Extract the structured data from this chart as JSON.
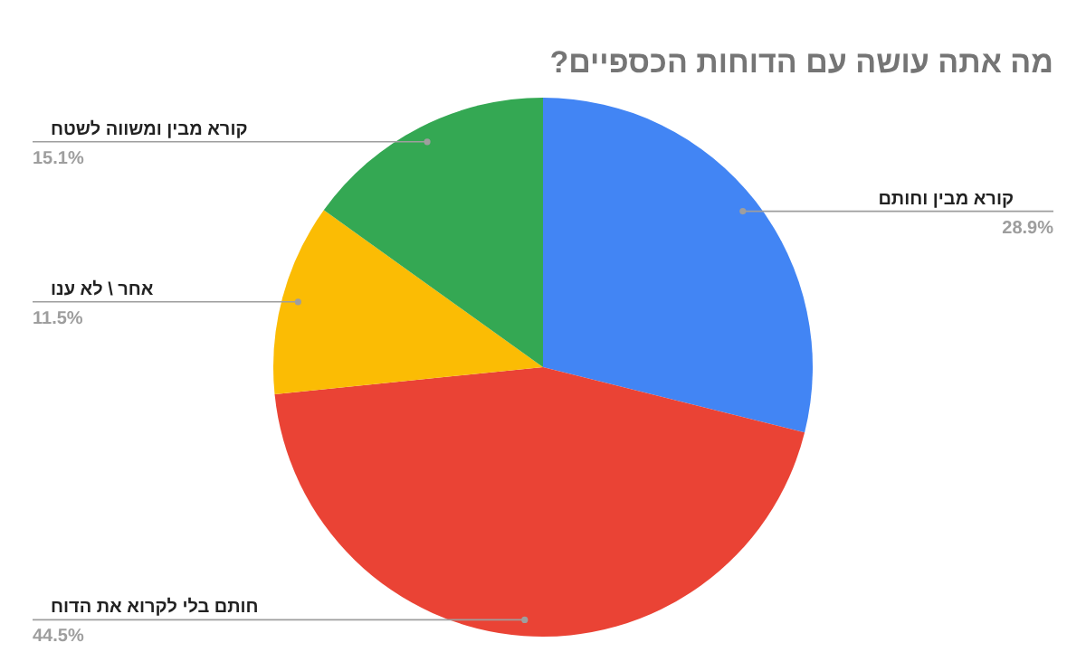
{
  "chart_data": {
    "type": "pie",
    "title": "מה אתה עושה עם הדוחות הכספיים?",
    "categories": [
      "קורא מבין וחותם",
      "חותם בלי לקרוא את הדוח",
      "אחר \\ לא ענו",
      "קורא מבין ומשווה לשטח"
    ],
    "values": [
      28.9,
      44.5,
      11.5,
      15.1
    ],
    "value_labels": [
      "28.9%",
      "44.5%",
      "11.5%",
      "15.1%"
    ],
    "colors": [
      "#4285f4",
      "#ea4335",
      "#fbbc04",
      "#34a853"
    ]
  }
}
